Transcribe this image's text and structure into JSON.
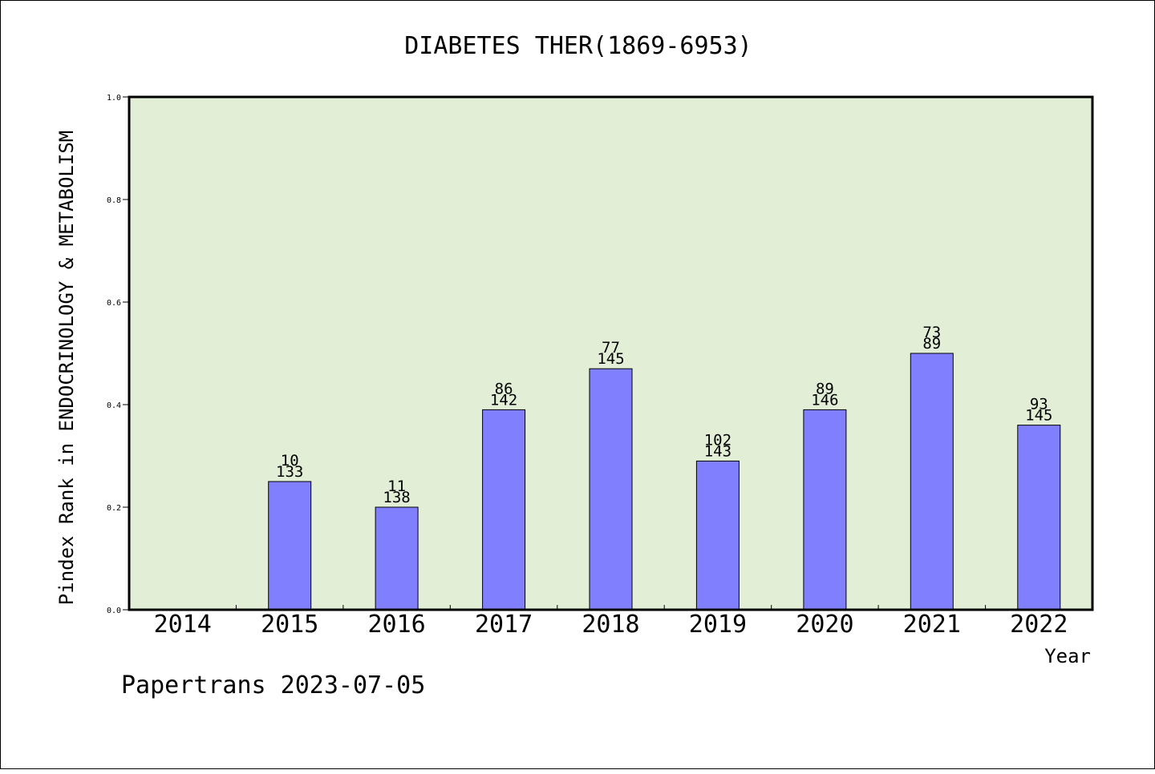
{
  "chart_data": {
    "type": "bar",
    "title": "DIABETES THER(1869-6953)",
    "xlabel": "Year",
    "ylabel": "Pindex Rank in ENDOCRINOLOGY & METABOLISM",
    "categories": [
      "2014",
      "2015",
      "2016",
      "2017",
      "2018",
      "2019",
      "2020",
      "2021",
      "2022"
    ],
    "values": [
      null,
      0.25,
      0.2,
      0.39,
      0.47,
      0.29,
      0.39,
      0.5,
      0.36
    ],
    "rank_labels": [
      null,
      "10",
      "11",
      "86",
      "77",
      "102",
      "89",
      "73",
      "93"
    ],
    "total_labels": [
      null,
      "133",
      "138",
      "142",
      "145",
      "143",
      "146",
      "89",
      "145"
    ],
    "ylim": [
      0,
      1
    ],
    "yticks": [
      "0.0",
      "0.2",
      "0.4",
      "0.6",
      "0.8",
      "1.0"
    ],
    "grid": false,
    "colors": {
      "plot_bg": "#e2efd6",
      "bar": "#8080ff"
    }
  },
  "footer": {
    "credit": "Papertrans 2023-07-05"
  }
}
